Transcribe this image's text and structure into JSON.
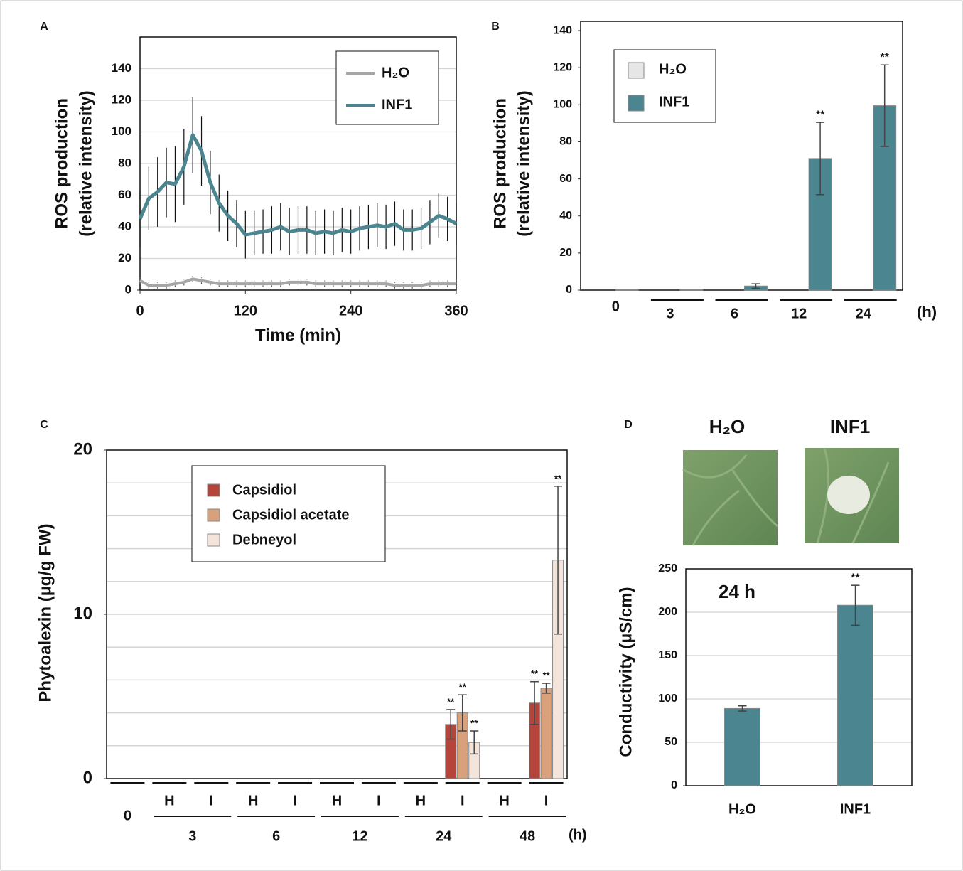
{
  "chart_data": [
    {
      "panel": "A",
      "type": "line",
      "x_label": "Time (min)",
      "y_label": [
        "ROS production",
        "(relative intensity)"
      ],
      "x": [
        0,
        10,
        20,
        30,
        40,
        50,
        60,
        70,
        80,
        90,
        100,
        110,
        120,
        130,
        140,
        150,
        160,
        170,
        180,
        190,
        200,
        210,
        220,
        230,
        240,
        250,
        260,
        270,
        280,
        290,
        300,
        310,
        320,
        330,
        340,
        350,
        360
      ],
      "xlim": [
        0,
        360
      ],
      "xticks": [
        0,
        120,
        240,
        360
      ],
      "ylim": [
        0,
        160
      ],
      "yticks": [
        0,
        20,
        40,
        60,
        80,
        100,
        120,
        140
      ],
      "grid": true,
      "legend": "upper right",
      "series": [
        {
          "name": "H₂O",
          "color": "#a6a6a6",
          "values": [
            6,
            3,
            3,
            3,
            4,
            5,
            7,
            6,
            5,
            4,
            4,
            4,
            4,
            4,
            4,
            4,
            4,
            5,
            5,
            5,
            4,
            4,
            4,
            4,
            4,
            4,
            4,
            4,
            4,
            3,
            3,
            3,
            3,
            4,
            4,
            4,
            4
          ],
          "errors": [
            2,
            2,
            2,
            2,
            2,
            2,
            2,
            2,
            2,
            2,
            2,
            2,
            2,
            2,
            2,
            2,
            2,
            2,
            2,
            2,
            2,
            2,
            2,
            2,
            2,
            2,
            2,
            2,
            2,
            2,
            2,
            2,
            2,
            2,
            2,
            2,
            2
          ]
        },
        {
          "name": "INF1",
          "color": "#4a8590",
          "values": [
            45,
            58,
            62,
            68,
            67,
            78,
            98,
            88,
            68,
            55,
            47,
            42,
            35,
            36,
            37,
            38,
            40,
            37,
            38,
            38,
            36,
            37,
            36,
            38,
            37,
            39,
            40,
            41,
            40,
            42,
            38,
            38,
            39,
            43,
            47,
            45,
            42
          ],
          "errors": [
            18,
            20,
            22,
            22,
            24,
            24,
            24,
            22,
            20,
            18,
            16,
            15,
            15,
            14,
            14,
            15,
            15,
            15,
            15,
            15,
            14,
            14,
            14,
            14,
            14,
            14,
            14,
            14,
            14,
            14,
            13,
            13,
            13,
            14,
            14,
            14,
            13
          ]
        }
      ]
    },
    {
      "panel": "B",
      "type": "bar",
      "y_label": [
        "ROS production",
        "(relative intensity)"
      ],
      "categories": [
        "0",
        "3",
        "6",
        "12",
        "24"
      ],
      "x_unit": "(h)",
      "ylim": [
        0,
        145
      ],
      "yticks": [
        0,
        20,
        40,
        60,
        80,
        100,
        120,
        140
      ],
      "grid": false,
      "legend": "upper left",
      "series": [
        {
          "name": "H₂O",
          "color": "#e6e6e6",
          "values": [
            0,
            0,
            0,
            0,
            0
          ],
          "errors": [
            0,
            0,
            0,
            0,
            0
          ],
          "stars": [
            null,
            null,
            null,
            null,
            null
          ]
        },
        {
          "name": "INF1",
          "color": "#4a8590",
          "values": [
            0.3,
            0.4,
            2.2,
            71,
            99.5
          ],
          "errors": [
            0,
            0,
            1.2,
            19.5,
            22
          ],
          "stars": [
            null,
            null,
            null,
            "**",
            "**"
          ]
        }
      ]
    },
    {
      "panel": "C",
      "type": "bar",
      "y_label": "Phytoalexin (µg/g FW)",
      "categories": [
        "0",
        "H",
        "I",
        "H",
        "I",
        "H",
        "I",
        "H",
        "I",
        "H",
        "I"
      ],
      "groups": [
        "3",
        "6",
        "12",
        "24",
        "48"
      ],
      "x_unit": "(h)",
      "ylim": [
        0,
        20
      ],
      "yticks": [
        0,
        10,
        20
      ],
      "grid_values": [
        2,
        4,
        6,
        8,
        10,
        12,
        14,
        16,
        18
      ],
      "grid": true,
      "legend": "upper left",
      "series": [
        {
          "name": "Capsidiol",
          "color": "#b5453a",
          "values": [
            0,
            0,
            0,
            0,
            0,
            0,
            0,
            0,
            3.3,
            0,
            4.6
          ],
          "errors": [
            0,
            0,
            0,
            0,
            0,
            0,
            0,
            0,
            0.9,
            0,
            1.3
          ],
          "stars": [
            null,
            null,
            null,
            null,
            null,
            null,
            null,
            null,
            "**",
            null,
            "**"
          ]
        },
        {
          "name": "Capsidiol acetate",
          "color": "#d9a07c",
          "values": [
            0,
            0,
            0,
            0,
            0,
            0,
            0,
            0,
            4.0,
            0,
            5.5
          ],
          "errors": [
            0,
            0,
            0,
            0,
            0,
            0,
            0,
            0,
            1.1,
            0,
            0.3
          ],
          "stars": [
            null,
            null,
            null,
            null,
            null,
            null,
            null,
            null,
            "**",
            null,
            "**"
          ]
        },
        {
          "name": "Debneyol",
          "color": "#f3e5dc",
          "values": [
            0,
            0,
            0,
            0,
            0,
            0,
            0,
            0,
            2.2,
            0,
            13.3
          ],
          "errors": [
            0,
            0,
            0,
            0,
            0,
            0,
            0,
            0,
            0.7,
            0,
            4.5
          ],
          "stars": [
            null,
            null,
            null,
            null,
            null,
            null,
            null,
            null,
            "**",
            null,
            "**"
          ]
        }
      ]
    },
    {
      "panel": "D",
      "type": "bar",
      "photo_labels": [
        "H₂O",
        "INF1"
      ],
      "annotation": "24 h",
      "y_label": "Conductivity (µS/cm)",
      "categories": [
        "H₂O",
        "INF1"
      ],
      "ylim": [
        0,
        250
      ],
      "yticks": [
        0,
        50,
        100,
        150,
        200,
        250
      ],
      "grid": true,
      "series": [
        {
          "color": "#4a8590",
          "values": [
            89,
            208
          ],
          "errors": [
            3,
            23
          ],
          "stars": [
            null,
            "**"
          ]
        }
      ]
    }
  ]
}
